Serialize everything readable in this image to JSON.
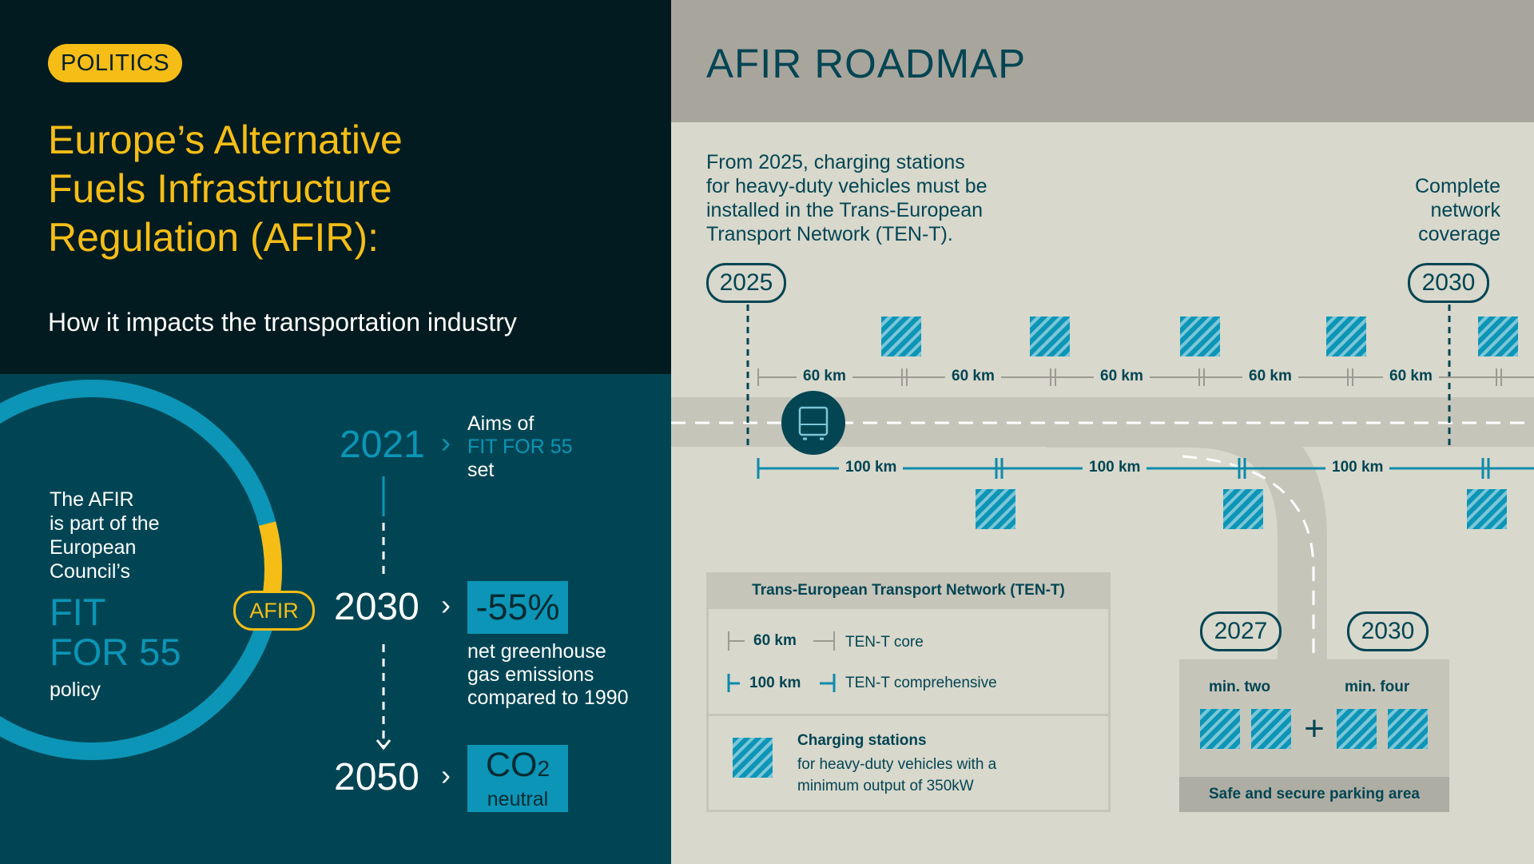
{
  "left": {
    "tag": "POLITICS",
    "title": [
      "Europe’s Alternative",
      "Fuels Infrastructure",
      "Regulation (AFIR):"
    ],
    "subtitle": "How it impacts the transportation industry",
    "circle": {
      "intro": [
        "The AFIR",
        "is part of the",
        "European",
        "Council’s"
      ],
      "fit": [
        "FIT",
        "FOR 55"
      ],
      "policy": "policy",
      "afir_badge": "AFIR"
    },
    "timeline": {
      "y2021": "2021",
      "aims": [
        "Aims of",
        "FIT FOR 55",
        "set"
      ],
      "y2030": "2030",
      "pct": "-55%",
      "ghg": [
        "net greenhouse",
        "gas emissions",
        "compared to 1990"
      ],
      "y2050": "2050",
      "co2": "CO",
      "co2_sub": "2",
      "neutral": "neutral",
      "chevron": "›"
    }
  },
  "right": {
    "title": "AFIR ROADMAP",
    "intro": [
      "From 2025, charging stations",
      "for heavy-duty vehicles must be",
      "installed in the Trans-European",
      "Transport Network (TEN-T)."
    ],
    "coverage": [
      "Complete",
      "network",
      "coverage"
    ],
    "year_start": "2025",
    "year_end": "2030",
    "km_core": "60 km",
    "km_comp": "100 km",
    "legend": {
      "title": "Trans-European Transport Network (TEN-T)",
      "core_km": "60 km",
      "core_label": "TEN-T core",
      "comp_km": "100 km",
      "comp_label": "TEN-T comprehensive",
      "charging_title": "Charging stations",
      "charging_desc": [
        "for heavy-duty vehicles with a",
        "minimum output of 350kW"
      ]
    },
    "parking": {
      "y2027": "2027",
      "y2030": "2030",
      "min_two": "min. two",
      "min_four": "min. four",
      "plus": "+",
      "footer": "Safe and secure parking area"
    }
  },
  "colors": {
    "yellow": "#f5bd16",
    "teal": "#0c95b6",
    "dark": "#034553",
    "navy": "#021b20"
  }
}
